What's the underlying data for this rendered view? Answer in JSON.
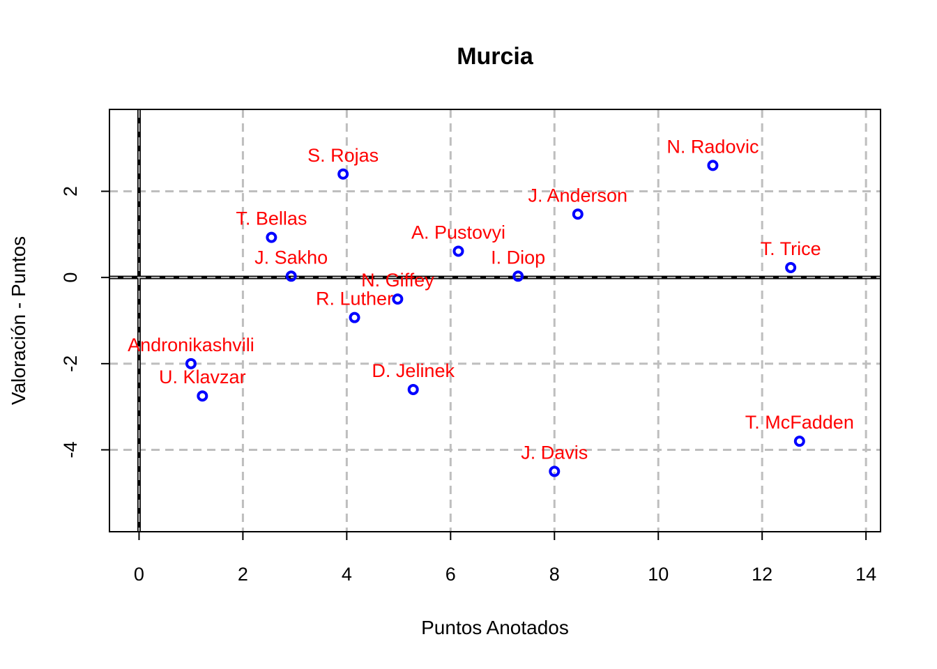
{
  "chart_data": {
    "type": "scatter",
    "title": "Murcia",
    "xlabel": "Puntos Anotados",
    "ylabel": "Valoración - Puntos",
    "xlim": [
      -0.57,
      14.28
    ],
    "ylim": [
      -5.9,
      3.9
    ],
    "xticks": [
      0,
      2,
      4,
      6,
      8,
      10,
      12,
      14
    ],
    "yticks": [
      -4,
      -2,
      0,
      2
    ],
    "grid": true,
    "reference_lines": {
      "x": 0,
      "y": 0
    },
    "colors": {
      "points": "#0000ff",
      "labels": "#ff0000",
      "grid": "#bebebe",
      "axes": "#000000"
    },
    "points": [
      {
        "label": "S. Rojas",
        "x": 3.93,
        "y": 2.4
      },
      {
        "label": "N. Radovic",
        "x": 11.05,
        "y": 2.6
      },
      {
        "label": "J. Anderson",
        "x": 8.45,
        "y": 1.47
      },
      {
        "label": "T. Bellas",
        "x": 2.55,
        "y": 0.93
      },
      {
        "label": "A. Pustovyi",
        "x": 6.15,
        "y": 0.61
      },
      {
        "label": "J. Sakho",
        "x": 2.93,
        "y": 0.03
      },
      {
        "label": "I. Diop",
        "x": 7.3,
        "y": 0.03
      },
      {
        "label": "T. Trice",
        "x": 12.55,
        "y": 0.23
      },
      {
        "label": "N. Giffey",
        "x": 4.98,
        "y": -0.5
      },
      {
        "label": "R. Luther",
        "x": 4.15,
        "y": -0.93
      },
      {
        "label": "Andronikashvili",
        "x": 1.0,
        "y": -2.0
      },
      {
        "label": "U. Klavzar",
        "x": 1.22,
        "y": -2.75
      },
      {
        "label": "D. Jelinek",
        "x": 5.28,
        "y": -2.6
      },
      {
        "label": "J. Davis",
        "x": 8.0,
        "y": -4.5
      },
      {
        "label": "T. McFadden",
        "x": 12.72,
        "y": -3.8
      }
    ]
  }
}
